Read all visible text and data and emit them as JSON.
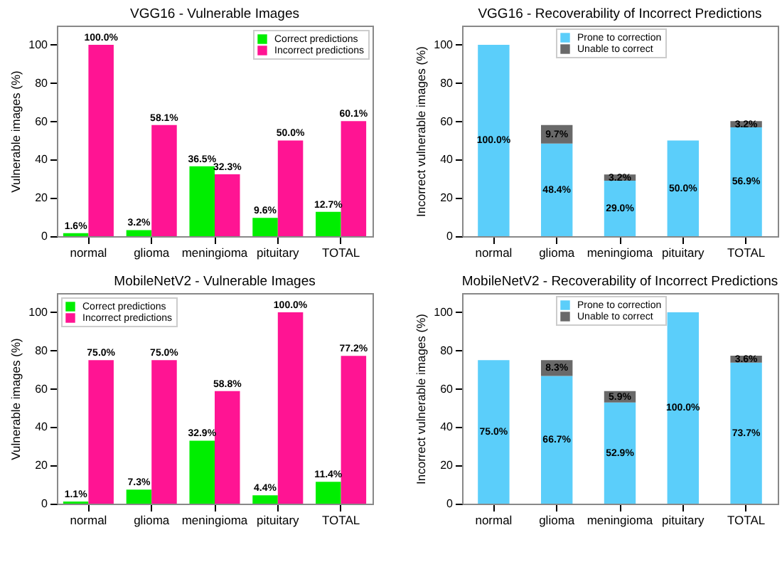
{
  "chart_data": [
    {
      "type": "bar",
      "title": "VGG16 - Vulnerable Images",
      "ylabel": "Vulnerable images (%)",
      "categories": [
        "normal",
        "glioma",
        "meningioma",
        "pituitary",
        "TOTAL"
      ],
      "ylim": [
        0,
        110
      ],
      "yticks": [
        0,
        20,
        40,
        60,
        80,
        100
      ],
      "legend": "top right",
      "series": [
        {
          "name": "Correct predictions",
          "color": "#00ee00",
          "values": [
            1.6,
            3.2,
            36.5,
            9.6,
            12.7
          ],
          "value_labels": [
            "1.6%",
            "3.2%",
            "36.5%",
            "9.6%",
            "12.7%"
          ]
        },
        {
          "name": "Incorrect predictions",
          "color": "#ff1493",
          "values": [
            100.0,
            58.1,
            32.3,
            50.0,
            60.1
          ],
          "value_labels": [
            "100.0%",
            "58.1%",
            "32.3%",
            "50.0%",
            "60.1%"
          ]
        }
      ]
    },
    {
      "type": "bar",
      "stacked": true,
      "title": "VGG16 - Recoverability of Incorrect Predictions",
      "ylabel": "Incorrect vulnerable images (%)",
      "categories": [
        "normal",
        "glioma",
        "meningioma",
        "pituitary",
        "TOTAL"
      ],
      "ylim": [
        0,
        110
      ],
      "yticks": [
        0,
        20,
        40,
        60,
        80,
        100
      ],
      "legend": "top",
      "series": [
        {
          "name": "Prone to correction",
          "color": "#5bcefa",
          "values": [
            100.0,
            48.4,
            29.0,
            50.0,
            56.9
          ],
          "value_labels": [
            "100.0%",
            "48.4%",
            "29.0%",
            "50.0%",
            "56.9%"
          ]
        },
        {
          "name": "Unable to correct",
          "color": "#696969",
          "values": [
            null,
            9.7,
            3.2,
            null,
            3.2
          ],
          "value_labels": [
            null,
            "9.7%",
            "3.2%",
            null,
            "3.2%"
          ]
        }
      ]
    },
    {
      "type": "bar",
      "title": "MobileNetV2 - Vulnerable Images",
      "ylabel": "Vulnerable images (%)",
      "categories": [
        "normal",
        "glioma",
        "meningioma",
        "pituitary",
        "TOTAL"
      ],
      "ylim": [
        0,
        110
      ],
      "yticks": [
        0,
        20,
        40,
        60,
        80,
        100
      ],
      "legend": "top left",
      "series": [
        {
          "name": "Correct predictions",
          "color": "#00ee00",
          "values": [
            1.1,
            7.3,
            32.9,
            4.4,
            11.4
          ],
          "value_labels": [
            "1.1%",
            "7.3%",
            "32.9%",
            "4.4%",
            "11.4%"
          ]
        },
        {
          "name": "Incorrect predictions",
          "color": "#ff1493",
          "values": [
            75.0,
            75.0,
            58.8,
            100.0,
            77.2
          ],
          "value_labels": [
            "75.0%",
            "75.0%",
            "58.8%",
            "100.0%",
            "77.2%"
          ]
        }
      ]
    },
    {
      "type": "bar",
      "stacked": true,
      "title": "MobileNetV2 - Recoverability of Incorrect Predictions",
      "ylabel": "Incorrect vulnerable images (%)",
      "categories": [
        "normal",
        "glioma",
        "meningioma",
        "pituitary",
        "TOTAL"
      ],
      "ylim": [
        0,
        110
      ],
      "yticks": [
        0,
        20,
        40,
        60,
        80,
        100
      ],
      "legend": "top",
      "series": [
        {
          "name": "Prone to correction",
          "color": "#5bcefa",
          "values": [
            75.0,
            66.7,
            52.9,
            100.0,
            73.7
          ],
          "value_labels": [
            "75.0%",
            "66.7%",
            "52.9%",
            "100.0%",
            "73.7%"
          ]
        },
        {
          "name": "Unable to correct",
          "color": "#696969",
          "values": [
            null,
            8.3,
            5.9,
            null,
            3.6
          ],
          "value_labels": [
            null,
            "8.3%",
            "5.9%",
            null,
            "3.6%"
          ]
        }
      ]
    }
  ]
}
